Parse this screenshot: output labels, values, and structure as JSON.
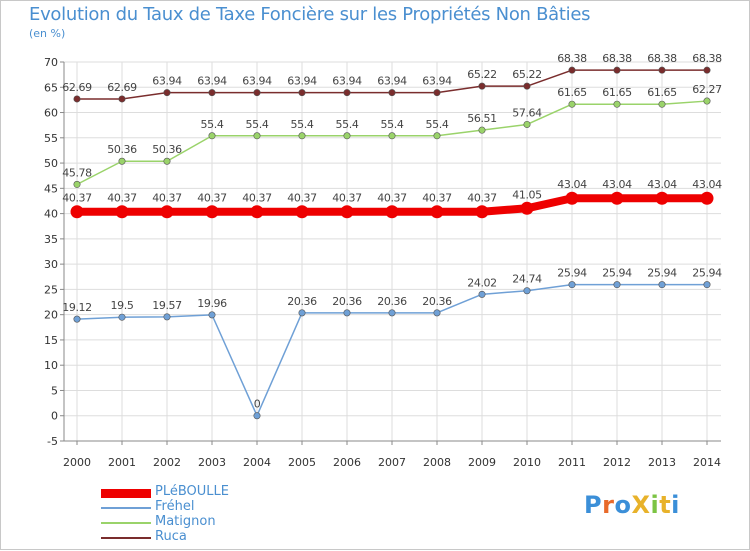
{
  "title": "Evolution du Taux de Taxe Foncière sur les Propriétés Non Bâties",
  "unit_label": "(en %)",
  "logo": {
    "text": "ProXiti",
    "letters": [
      {
        "ch": "P",
        "color": "#3b8fd8"
      },
      {
        "ch": "r",
        "color": "#e86a2a"
      },
      {
        "ch": "o",
        "color": "#3b8fd8"
      },
      {
        "ch": "X",
        "color": "#e8b22a"
      },
      {
        "ch": "i",
        "color": "#7cc444"
      },
      {
        "ch": "t",
        "color": "#e8b22a"
      },
      {
        "ch": "i",
        "color": "#3b8fd8"
      }
    ]
  },
  "chart_data": {
    "type": "line",
    "title": "Evolution du Taux de Taxe Foncière sur les Propriétés Non Bâties",
    "ylabel": "(en %)",
    "xlabel": "",
    "ylim": [
      -5,
      70
    ],
    "yticks": [
      -5,
      0,
      5,
      10,
      15,
      20,
      25,
      30,
      35,
      40,
      45,
      50,
      55,
      60,
      65,
      70
    ],
    "grid": true,
    "legend_position": "bottom-left",
    "categories": [
      "2000",
      "2001",
      "2002",
      "2003",
      "2004",
      "2005",
      "2006",
      "2007",
      "2008",
      "2009",
      "2010",
      "2011",
      "2012",
      "2013",
      "2014"
    ],
    "series": [
      {
        "name": "PLéBOULLE",
        "color": "#ee0000",
        "emphasis": true,
        "values": [
          40.37,
          40.37,
          40.37,
          40.37,
          40.37,
          40.37,
          40.37,
          40.37,
          40.37,
          40.37,
          41.05,
          43.04,
          43.04,
          43.04,
          43.04
        ],
        "labels": [
          "40.37",
          "40.37",
          "40.37",
          "40.37",
          "40.37",
          "40.37",
          "40.37",
          "40.37",
          "40.37",
          "40.37",
          "41.05",
          "43.04",
          "43.04",
          "43.04",
          "43.04"
        ]
      },
      {
        "name": "Fréhel",
        "color": "#6fa0d6",
        "emphasis": false,
        "values": [
          19.12,
          19.5,
          19.57,
          19.96,
          0,
          20.36,
          20.36,
          20.36,
          20.36,
          24.02,
          24.74,
          25.94,
          25.94,
          25.94,
          25.94
        ],
        "labels": [
          "19.12",
          "19.5",
          "19.57",
          "19.96",
          "0",
          "20.36",
          "20.36",
          "20.36",
          "20.36",
          "24.02",
          "24.74",
          "25.94",
          "25.94",
          "25.94",
          "25.94"
        ]
      },
      {
        "name": "Matignon",
        "color": "#9ad36a",
        "emphasis": false,
        "values": [
          45.78,
          50.36,
          50.36,
          55.4,
          55.4,
          55.4,
          55.4,
          55.4,
          55.4,
          56.51,
          57.64,
          61.65,
          61.65,
          61.65,
          62.27
        ],
        "labels": [
          "45.78",
          "50.36",
          "50.36",
          "55.4",
          "55.4",
          "55.4",
          "55.4",
          "55.4",
          "55.4",
          "56.51",
          "57.64",
          "61.65",
          "61.65",
          "61.65",
          "62.27"
        ]
      },
      {
        "name": "Ruca",
        "color": "#7a2d2d",
        "emphasis": false,
        "values": [
          62.69,
          62.69,
          63.94,
          63.94,
          63.94,
          63.94,
          63.94,
          63.94,
          63.94,
          65.22,
          65.22,
          68.38,
          68.38,
          68.38,
          68.38
        ],
        "labels": [
          "62.69",
          "62.69",
          "63.94",
          "63.94",
          "63.94",
          "63.94",
          "63.94",
          "63.94",
          "63.94",
          "65.22",
          "65.22",
          "68.38",
          "68.38",
          "68.38",
          "68.38"
        ]
      }
    ]
  }
}
